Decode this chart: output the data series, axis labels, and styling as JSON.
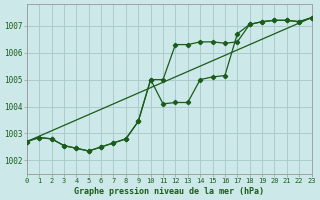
{
  "title": "Graphe pression niveau de la mer (hPa)",
  "bg_color": "#cce8e8",
  "grid_color": "#aacccc",
  "line_color": "#1a5c1a",
  "x_min": 0,
  "x_max": 23,
  "y_min": 1001.5,
  "y_max": 1007.8,
  "y_ticks": [
    1002,
    1003,
    1004,
    1005,
    1006,
    1007
  ],
  "x_ticks": [
    0,
    1,
    2,
    3,
    4,
    5,
    6,
    7,
    8,
    9,
    10,
    11,
    12,
    13,
    14,
    15,
    16,
    17,
    18,
    19,
    20,
    21,
    22,
    23
  ],
  "series1": [
    1002.7,
    1002.85,
    1002.8,
    1002.55,
    1002.45,
    1002.35,
    1002.5,
    1002.65,
    1002.8,
    1003.45,
    1005.0,
    1005.0,
    1006.3,
    1006.3,
    1006.4,
    1006.4,
    1006.35,
    1006.4,
    1007.05,
    1007.15,
    1007.2,
    1007.2,
    1007.15,
    1007.3
  ],
  "series2": [
    1002.7,
    1002.85,
    1002.8,
    1002.55,
    1002.45,
    1002.35,
    1002.5,
    1002.65,
    1002.8,
    1003.45,
    1005.0,
    1004.1,
    1004.15,
    1004.15,
    1005.0,
    1005.1,
    1005.15,
    1006.7,
    1007.05,
    1007.15,
    1007.2,
    1007.2,
    1007.15,
    1007.3
  ],
  "series3_x": [
    0,
    23
  ],
  "series3_y": [
    1002.7,
    1007.3
  ]
}
